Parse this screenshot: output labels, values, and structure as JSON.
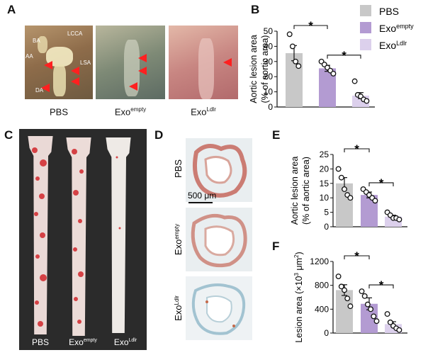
{
  "panels": {
    "A": {
      "letter": "A",
      "captions": [
        "PBS",
        "Exo",
        "Exo"
      ],
      "caption_sups": [
        "",
        "empty",
        "Ldlr"
      ],
      "anatomy_labels": [
        "BA",
        "LCCA",
        "AA",
        "LSA",
        "DA"
      ],
      "colors": {
        "tissue1": "#9a7a58",
        "tissue2": "#8f9a86",
        "tissue3": "#c58a86",
        "arrow": "#ff2020"
      }
    },
    "B": {
      "letter": "B"
    },
    "C": {
      "letter": "C",
      "captions": [
        "PBS",
        "Exo",
        "Exo"
      ],
      "caption_sups": [
        "",
        "empty",
        "Ldlr"
      ]
    },
    "D": {
      "letter": "D",
      "row_labels": [
        "PBS",
        "Exo",
        "Exo"
      ],
      "row_sups": [
        "",
        "empty",
        "Ldlr"
      ],
      "scale_bar": "500 μm"
    },
    "E": {
      "letter": "E"
    },
    "F": {
      "letter": "F"
    }
  },
  "legend": {
    "items": [
      {
        "label": "PBS",
        "sup": "",
        "color": "#c8c8c8"
      },
      {
        "label": "Exo",
        "sup": "empty",
        "color": "#b39bd2"
      },
      {
        "label": "Exo",
        "sup": "Ldlr",
        "color": "#dcd0ec"
      }
    ]
  },
  "significance_marker": "*",
  "chart_data": [
    {
      "panel": "B",
      "type": "bar",
      "categories": [
        "PBS",
        "Exo empty",
        "Exo Ldlr"
      ],
      "values": [
        35.5,
        25.5,
        7.5
      ],
      "errors": [
        5.0,
        2.0,
        2.0
      ],
      "points": [
        [
          48,
          40,
          30,
          27
        ],
        [
          30,
          28,
          26,
          24,
          22
        ],
        [
          17,
          8,
          7,
          5,
          4
        ]
      ],
      "colors": [
        "#c8c8c8",
        "#b39bd2",
        "#dcd0ec"
      ],
      "ylabel": [
        "Aortic lesion area",
        "(% of aortic area)"
      ],
      "ylim": [
        0,
        50
      ],
      "yticks": [
        0,
        10,
        20,
        30,
        40,
        50
      ],
      "comparisons": [
        [
          0,
          1
        ],
        [
          1,
          2
        ]
      ]
    },
    {
      "panel": "E",
      "type": "bar",
      "categories": [
        "PBS",
        "Exo empty",
        "Exo Ldlr"
      ],
      "values": [
        15,
        11,
        3.5
      ],
      "errors": [
        2.0,
        1.0,
        0.5
      ],
      "points": [
        [
          20,
          17,
          13,
          11,
          10
        ],
        [
          13,
          12,
          11,
          10,
          9
        ],
        [
          5,
          4,
          3,
          3,
          2.5
        ]
      ],
      "colors": [
        "#c8c8c8",
        "#b39bd2",
        "#dcd0ec"
      ],
      "ylabel": [
        "Aortic lesion area",
        "(% of aortic area)"
      ],
      "ylim": [
        0,
        25
      ],
      "yticks": [
        0,
        5,
        10,
        15,
        20,
        25
      ],
      "comparisons": [
        [
          0,
          1
        ],
        [
          1,
          2
        ]
      ]
    },
    {
      "panel": "F",
      "type": "bar",
      "categories": [
        "PBS",
        "Exo empty",
        "Exo Ldlr"
      ],
      "values": [
        720,
        490,
        150
      ],
      "errors": [
        90,
        100,
        40
      ],
      "points": [
        [
          950,
          780,
          720,
          580,
          450
        ],
        [
          700,
          620,
          480,
          400,
          280,
          200
        ],
        [
          320,
          180,
          120,
          80,
          50
        ]
      ],
      "colors": [
        "#c8c8c8",
        "#b39bd2",
        "#dcd0ec"
      ],
      "ylabel": [
        "Lesion area (×10",
        "3",
        " μm",
        "2",
        ")"
      ],
      "ylim": [
        0,
        1200
      ],
      "yticks": [
        0,
        400,
        800,
        1200
      ],
      "comparisons": [
        [
          0,
          1
        ],
        [
          1,
          2
        ]
      ]
    }
  ]
}
